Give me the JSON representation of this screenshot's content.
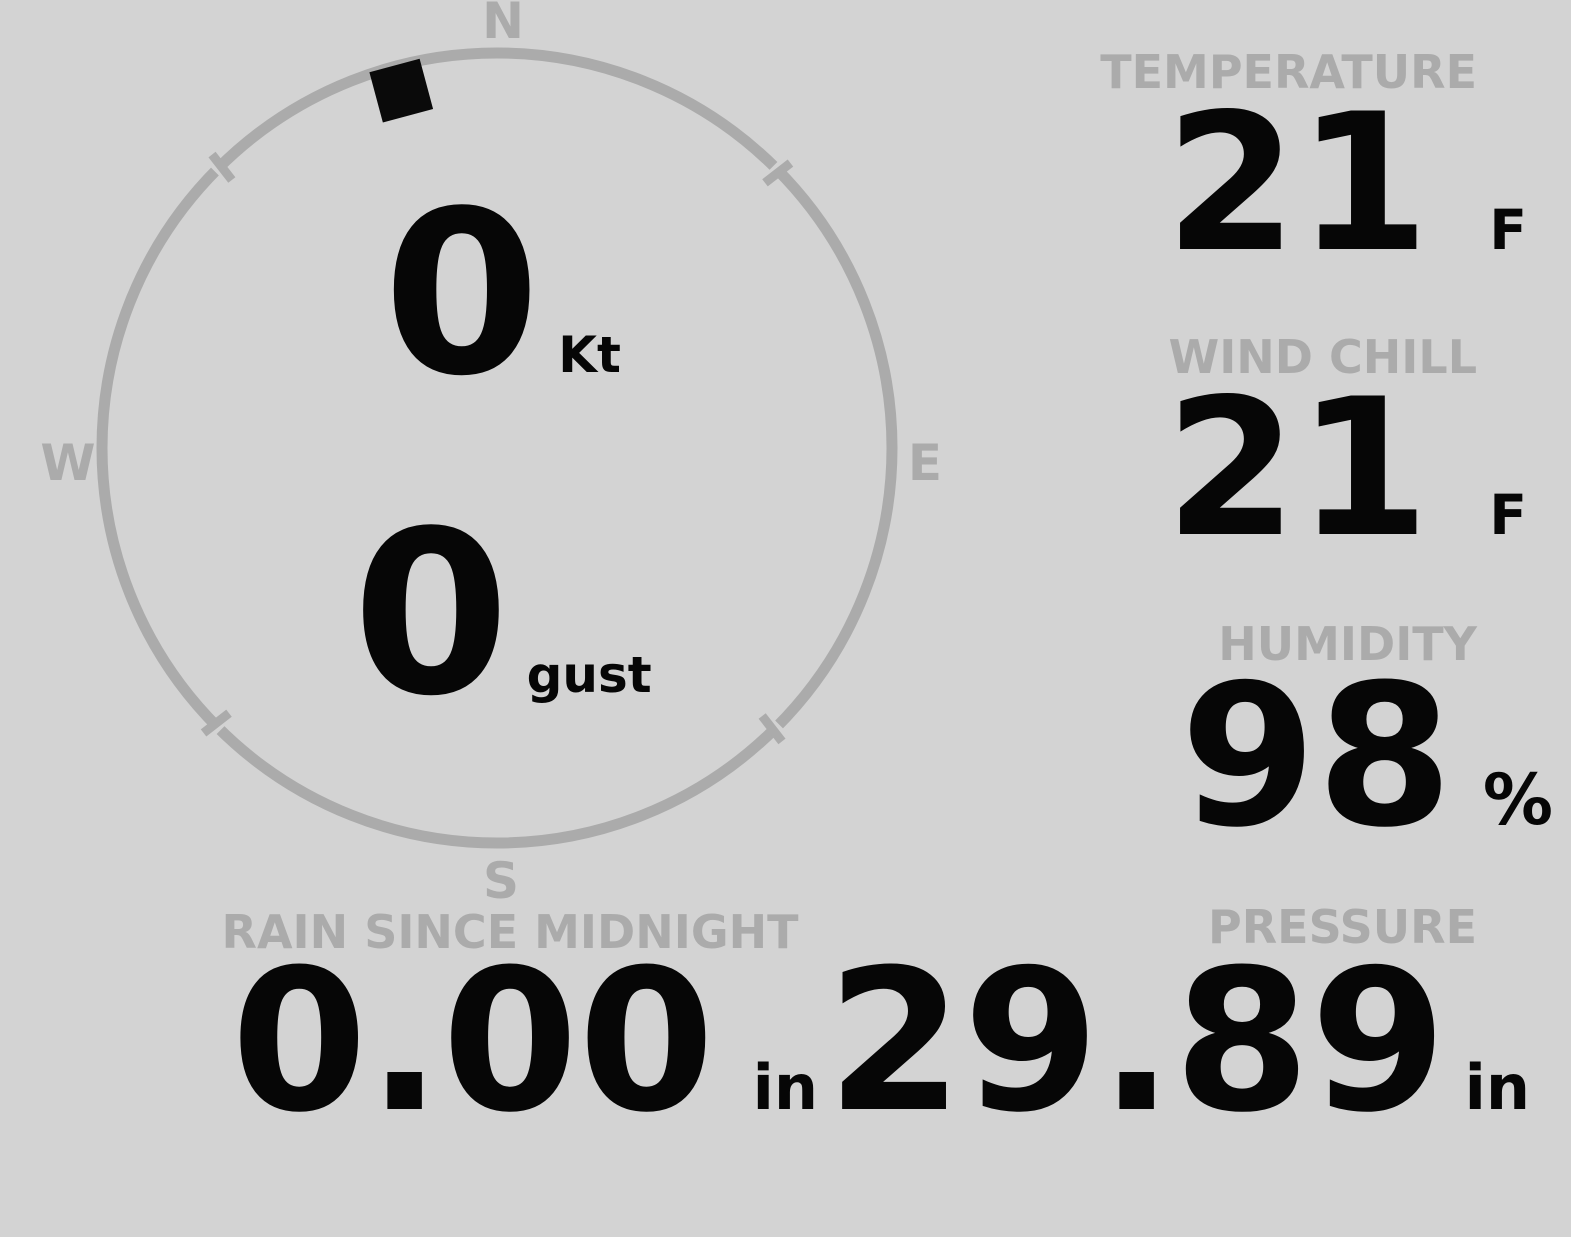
{
  "colors": {
    "background": "#d3d3d3",
    "muted_gray": "#ababab",
    "value_black": "#060606"
  },
  "compass": {
    "cardinals": {
      "n": "N",
      "e": "E",
      "s": "S",
      "w": "W"
    },
    "direction_marker_deg": 345,
    "wind_speed": {
      "value": "0",
      "unit": "Kt"
    },
    "wind_gust": {
      "value": "0",
      "unit": "gust"
    }
  },
  "metrics": {
    "temperature": {
      "label": "TEMPERATURE",
      "value": "21",
      "unit": "F"
    },
    "wind_chill": {
      "label": "WIND CHILL",
      "value": "21",
      "unit": "F"
    },
    "humidity": {
      "label": "HUMIDITY",
      "value": "98",
      "unit": "%"
    },
    "rain_since_midnight": {
      "label": "RAIN SINCE MIDNIGHT",
      "value": "0.00",
      "unit": "in"
    },
    "pressure": {
      "label": "PRESSURE",
      "value": "29.89",
      "unit": "in"
    }
  }
}
